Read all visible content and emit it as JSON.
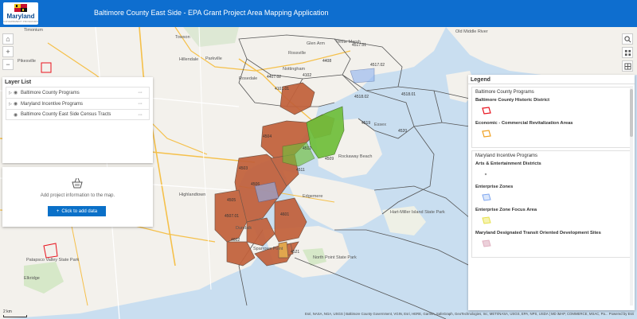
{
  "header": {
    "logo_text": "Maryland",
    "logo_subtitle": "GOVERNMENT PROGRAMS",
    "title": "Baltimore County East Side - EPA Grant Project Area Mapping Application",
    "background_color": "#0e6ecf"
  },
  "map": {
    "water_color": "#c9def0",
    "land_color": "#f3f1ec",
    "place_labels": [
      "Timonium",
      "Pikesville",
      "Towson",
      "Parkville",
      "Hillendale",
      "Nottingham",
      "Essex",
      "Old Middle River",
      "White Marsh",
      "Glen Arm",
      "Highlandtown",
      "Rockaway Beach",
      "Dundalk",
      "Edgemere",
      "Hart-Miller Island State Park",
      "North Point State Park",
      "Sparrows Point",
      "Patapsco Valley State Park",
      "Elkridge",
      "Rosedale",
      "Rossville"
    ],
    "tract_labels": [
      "4101.01",
      "4102",
      "4407.02",
      "4408",
      "4517.01",
      "4517.02",
      "4518.01",
      "4518.02",
      "4519",
      "4520",
      "4521",
      "4509",
      "4511",
      "4512",
      "4503",
      "4504",
      "4505",
      "4506",
      "4507.01",
      "4601",
      "4602"
    ],
    "zoom_controls": [
      "home-icon",
      "plus-icon",
      "minus-icon"
    ],
    "right_tools": [
      "search-icon",
      "layers-icon",
      "basemap-icon"
    ],
    "scale_label": "2 km",
    "attribution": "Esri, NASA, NGA, USGS | Baltimore County Government, VGIN, Esri, HERE, Garmin, SafeGraph, GeoTechnologies, Inc, METI/NASA, USGS, EPA, NPS, USDA | MD iMAP, COMMERCE, MSAC, Pa... Powered by Esri"
  },
  "layer_list": {
    "title": "Layer List",
    "items": [
      {
        "label": "Baltimore County Programs",
        "icon": "eye-icon"
      },
      {
        "label": "Maryland Incentive Programs",
        "icon": "eye-icon"
      },
      {
        "label": "Baltimore County East Side Census Tracts",
        "icon": "eye-icon"
      }
    ],
    "menu_glyph": "···"
  },
  "add_data": {
    "message": "Add project information to the map.",
    "button_label": "Click to add data",
    "button_icon": "plus-icon"
  },
  "legend": {
    "title": "Legend",
    "groups": [
      {
        "title": "Baltimore County Programs",
        "entries": [
          {
            "label": "Baltimore County Historic District",
            "color": "#e8111c"
          },
          {
            "label": "Economic - Commercial Revitalization Areas",
            "color": "#f0a020"
          }
        ]
      },
      {
        "title": "Maryland Incentive Programs",
        "entries": [
          {
            "label": "Arts & Entertainment Districts",
            "color": "#999999"
          },
          {
            "label": "Enterprise Zones",
            "color": "#7fa6f0"
          },
          {
            "label": "Enterprise Zone Focus Area",
            "color": "#e6e04a"
          },
          {
            "label": "Maryland Designated Transit Oriented Development Sites",
            "color": "#e0b0c0"
          }
        ]
      }
    ]
  },
  "colors": {
    "tract_fill": "#c2603a",
    "green_area": "#6fbf3a",
    "tract_outline": "#555555",
    "accent_button": "#0a70c8"
  }
}
